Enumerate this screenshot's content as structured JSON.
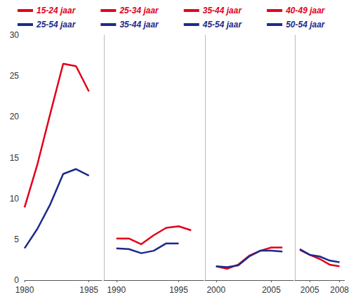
{
  "chart_data": [
    {
      "type": "line",
      "legend": "top",
      "grid": false,
      "x": [
        1980,
        1981,
        1982,
        1983,
        1984,
        1985
      ],
      "xlim": [
        1980,
        1986
      ],
      "xticks": [
        1980,
        1985
      ],
      "ylim": [
        0,
        30
      ],
      "yticks": [
        0,
        5,
        10,
        15,
        20,
        25,
        30
      ],
      "series": [
        {
          "name": "15-24 jaar",
          "color": "#e2001a",
          "values": [
            8.9,
            14.2,
            20.4,
            26.5,
            26.2,
            23.1
          ]
        },
        {
          "name": "25-54 jaar",
          "color": "#1c2a8a",
          "values": [
            3.9,
            6.3,
            9.3,
            13.0,
            13.6,
            12.8
          ]
        }
      ]
    },
    {
      "type": "line",
      "legend": "top",
      "grid": false,
      "tick_labels": "x",
      "x": [
        1990,
        1991,
        1992,
        1993,
        1994,
        1995,
        1996
      ],
      "xlim": [
        1989,
        1997
      ],
      "xticks": [
        1990,
        1995
      ],
      "ylim": [
        0,
        30
      ],
      "yticks": [
        0,
        5,
        10,
        15,
        20,
        25,
        30
      ],
      "series": [
        {
          "name": "25-34 jaar",
          "color": "#e2001a",
          "values": [
            5.1,
            5.1,
            4.4,
            5.5,
            6.4,
            6.6,
            6.1
          ]
        },
        {
          "name": "35-44 jaar",
          "color": "#1c2a8a",
          "values": [
            3.9,
            3.8,
            3.3,
            3.6,
            4.5,
            4.5,
            null
          ]
        }
      ]
    },
    {
      "type": "line",
      "legend": "top",
      "grid": false,
      "tick_labels": "x",
      "x": [
        2000,
        2001,
        2002,
        2003,
        2004,
        2005,
        2006
      ],
      "xlim": [
        1999,
        2007
      ],
      "xticks": [
        2000,
        2005
      ],
      "ylim": [
        0,
        30
      ],
      "yticks": [
        0,
        5,
        10,
        15,
        20,
        25,
        30
      ],
      "series": [
        {
          "name": "35-44 jaar",
          "color": "#e2001a",
          "values": [
            1.7,
            1.4,
            1.9,
            3.0,
            3.6,
            4.0,
            4.0
          ]
        },
        {
          "name": "45-54 jaar",
          "color": "#1c2a8a",
          "values": [
            1.7,
            1.6,
            1.8,
            2.9,
            3.6,
            3.6,
            3.5
          ]
        }
      ]
    },
    {
      "type": "line",
      "legend": "top",
      "grid": false,
      "tick_labels": "x",
      "x": [
        2004,
        2005,
        2006,
        2007,
        2008
      ],
      "xlim": [
        2003.5,
        2008.5
      ],
      "xticks": [
        2005,
        2008
      ],
      "ylim": [
        0,
        30
      ],
      "yticks": [
        0,
        5,
        10,
        15,
        20,
        25,
        30
      ],
      "series": [
        {
          "name": "40-49 jaar",
          "color": "#e2001a",
          "values": [
            3.7,
            3.1,
            2.6,
            1.9,
            1.7
          ]
        },
        {
          "name": "50-54 jaar",
          "color": "#1c2a8a",
          "values": [
            3.8,
            3.1,
            2.9,
            2.4,
            2.2
          ]
        }
      ]
    }
  ]
}
